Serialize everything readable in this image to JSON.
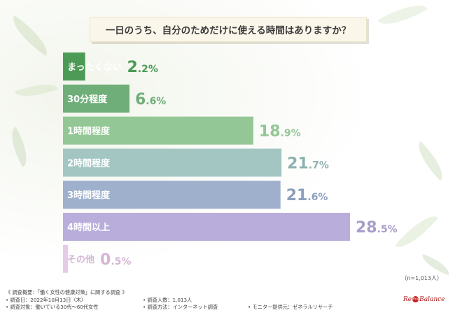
{
  "chart_data": {
    "type": "bar",
    "orientation": "horizontal",
    "title": "一日のうち、自分のためだけに使える時間はありますか？",
    "categories": [
      "まったくない",
      "30分程度",
      "1時間程度",
      "2時間程度",
      "3時間程度",
      "4時間以上",
      "その他"
    ],
    "values": [
      2.2,
      6.6,
      18.9,
      21.7,
      21.6,
      28.5,
      0.5
    ],
    "value_suffix": "%",
    "colors": [
      "#4c9a55",
      "#6fae78",
      "#93c795",
      "#a3c6c3",
      "#9fb0cc",
      "#b9addb",
      "#e6cbe6"
    ],
    "label_colors": [
      "#4c9a55",
      "#6fae78",
      "#93c795",
      "#8fb2b0",
      "#8c9fbd",
      "#a99dca",
      "#d4b7d4"
    ],
    "xlim": [
      0,
      28.5
    ],
    "grid": false,
    "legend": "none"
  },
  "sample_note": "（n=1,013人）",
  "footer": {
    "summary": "《 調査概要：「働く女性の健康対策」に関する調査 》",
    "date": "• 調査日：2022年10月13日（木）",
    "people": "• 調査人数：1,013人",
    "target": "• 調査対象：働いている30代～60代女性",
    "method": "• 調査方法：インターネット調査",
    "provider": "• モニター提供元：ゼネラルリサーチ"
  },
  "logo": {
    "left": "Re",
    "mid": "Body",
    "right": "Balance",
    "color": "#b01818"
  }
}
